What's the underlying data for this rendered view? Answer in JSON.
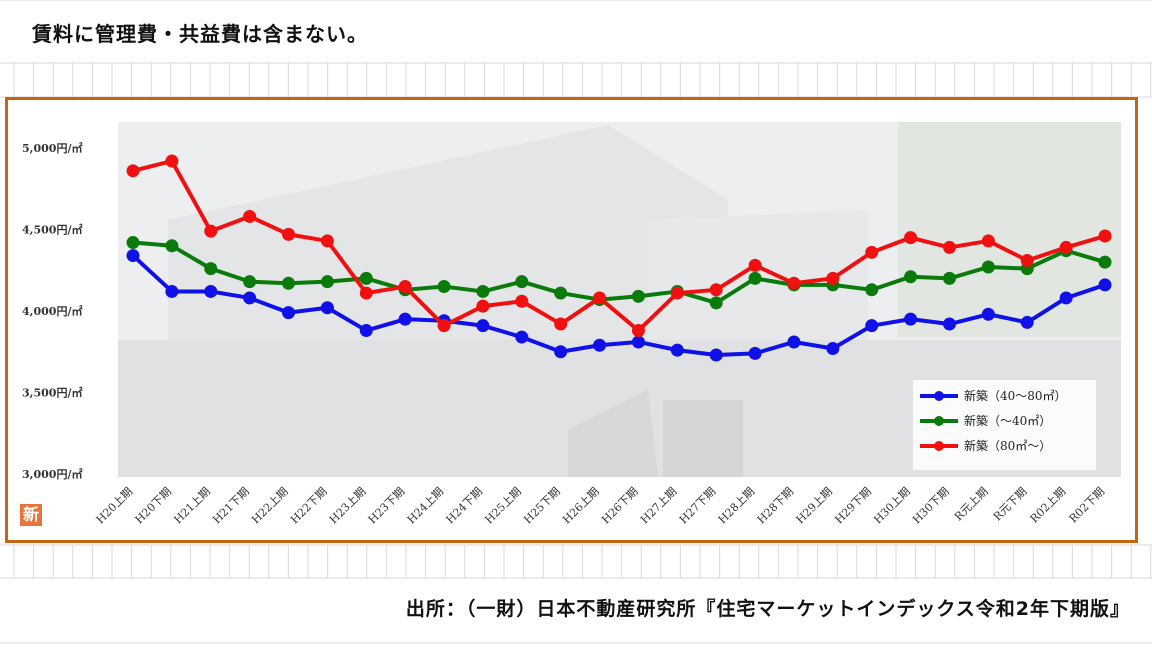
{
  "page": {
    "note": "賃料に管理費・共益費は含まない。",
    "source": "出所：（一財）日本不動産研究所『住宅マーケットインデックス令和2年下期版』",
    "badge": "新"
  },
  "colors": {
    "frame": "#c8630f",
    "grid": "#d9d9d9",
    "blue": "#1010e8",
    "green": "#0a7a0a",
    "red": "#f01010",
    "badge": "#e8743a"
  },
  "chart_data": {
    "type": "line",
    "title": "",
    "xlabel": "",
    "ylabel": "",
    "ylim": [
      3000,
      5000
    ],
    "yticks": [
      {
        "value": 3000,
        "label": "3,000円/㎡"
      },
      {
        "value": 3500,
        "label": "3,500円/㎡"
      },
      {
        "value": 4000,
        "label": "4,000円/㎡"
      },
      {
        "value": 4500,
        "label": "4,500円/㎡"
      },
      {
        "value": 5000,
        "label": "5,000円/㎡"
      }
    ],
    "categories": [
      "H20上期",
      "H20下期",
      "H21上期",
      "H21下期",
      "H22上期",
      "H22下期",
      "H23上期",
      "H23下期",
      "H24上期",
      "H24下期",
      "H25上期",
      "H25下期",
      "H26上期",
      "H26下期",
      "H27上期",
      "H27下期",
      "H28上期",
      "H28下期",
      "H29上期",
      "H29下期",
      "H30上期",
      "H30下期",
      "R元上期",
      "R元下期",
      "R02上期",
      "R02下期"
    ],
    "legend_position": "bottom-right",
    "series": [
      {
        "name": "新築（40～80㎡）",
        "color": "#1010e8",
        "values": [
          4340,
          4120,
          4120,
          4080,
          3990,
          4020,
          3880,
          3950,
          3940,
          3910,
          3840,
          3750,
          3790,
          3810,
          3760,
          3730,
          3740,
          3810,
          3770,
          3910,
          3950,
          3920,
          3980,
          3930,
          4080,
          4160
        ]
      },
      {
        "name": "新築（～40㎡）",
        "color": "#0a7a0a",
        "values": [
          4420,
          4400,
          4260,
          4180,
          4170,
          4180,
          4200,
          4130,
          4150,
          4120,
          4180,
          4110,
          4070,
          4090,
          4120,
          4050,
          4200,
          4160,
          4160,
          4130,
          4210,
          4200,
          4270,
          4260,
          4370,
          4300
        ]
      },
      {
        "name": "新築（80㎡～）",
        "color": "#f01010",
        "values": [
          4860,
          4920,
          4490,
          4580,
          4470,
          4430,
          4110,
          4150,
          3910,
          4030,
          4060,
          3920,
          4080,
          3880,
          4110,
          4130,
          4280,
          4170,
          4200,
          4360,
          4450,
          4390,
          4430,
          4310,
          4390,
          4460
        ]
      }
    ]
  }
}
